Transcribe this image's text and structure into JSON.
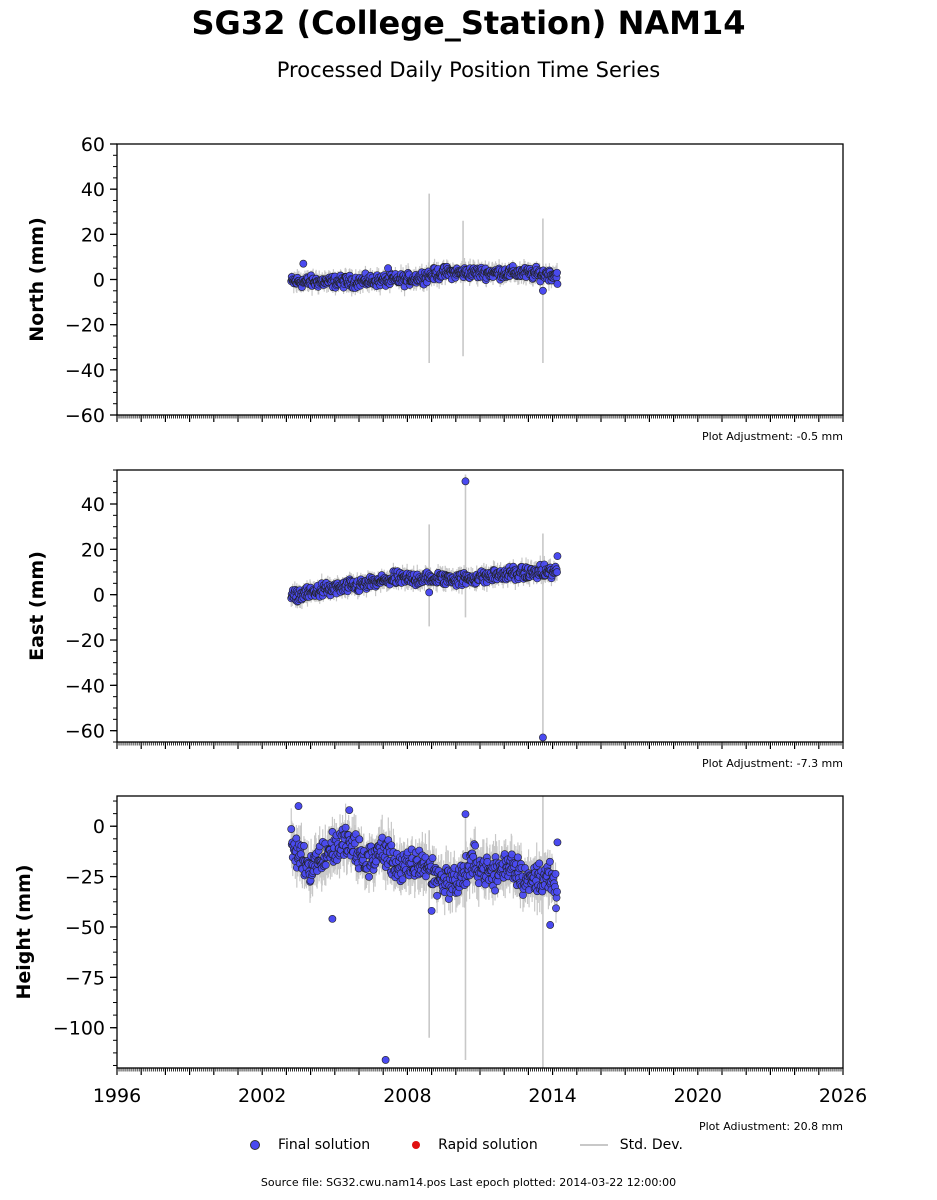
{
  "header": {
    "title": "SG32 (College_Station) NAM14",
    "subtitle": "Processed Daily Position Time Series"
  },
  "legend": {
    "final": "Final solution",
    "rapid": "Rapid solution",
    "stddev": "Std. Dev."
  },
  "footer": {
    "source": "Source file: SG32.cwu.nam14.pos  Last epoch plotted: 2014-03-22 12:00:00"
  },
  "colors": {
    "final": "#4a4af0",
    "rapid": "#e01010",
    "stddev": "#c8c8c8"
  },
  "chart_data": [
    {
      "type": "scatter",
      "ylabel": "North (mm)",
      "xlim": [
        1996,
        2026
      ],
      "ylim": [
        -60,
        60
      ],
      "yticks": [
        -60,
        -40,
        -20,
        0,
        20,
        40,
        60
      ],
      "annotation": "Plot Adjustment: -0.5 mm",
      "show_xtick_labels": false,
      "trend": [
        [
          2003.2,
          -1
        ],
        [
          2005.5,
          -1
        ],
        [
          2008.0,
          0
        ],
        [
          2009.5,
          3
        ],
        [
          2011.0,
          3
        ],
        [
          2012.5,
          3
        ],
        [
          2014.2,
          2
        ]
      ],
      "noise": 2.2,
      "err": 3,
      "outliers": [
        [
          2003.7,
          7
        ],
        [
          2007.2,
          5
        ],
        [
          2013.6,
          -5
        ],
        [
          2014.2,
          -2
        ]
      ],
      "big_errors": [
        [
          2008.9,
          38,
          -37
        ],
        [
          2010.3,
          26,
          -34
        ],
        [
          2013.6,
          27,
          -37
        ]
      ]
    },
    {
      "type": "scatter",
      "ylabel": "East (mm)",
      "xlim": [
        1996,
        2026
      ],
      "ylim": [
        -65,
        55
      ],
      "yticks": [
        -60,
        -40,
        -20,
        0,
        20,
        40
      ],
      "annotation": "Plot Adjustment: -7.3 mm",
      "show_xtick_labels": false,
      "trend": [
        [
          2003.2,
          -1
        ],
        [
          2004.5,
          2
        ],
        [
          2006.0,
          4
        ],
        [
          2007.5,
          7
        ],
        [
          2009.0,
          7
        ],
        [
          2010.5,
          7
        ],
        [
          2012.0,
          9
        ],
        [
          2014.2,
          10
        ]
      ],
      "noise": 2.5,
      "err": 3,
      "outliers": [
        [
          2010.4,
          50
        ],
        [
          2013.6,
          -63
        ],
        [
          2014.2,
          17
        ],
        [
          2008.9,
          1
        ]
      ],
      "big_errors": [
        [
          2008.9,
          31,
          -14
        ],
        [
          2010.4,
          53,
          -10
        ],
        [
          2013.6,
          27,
          -63
        ]
      ]
    },
    {
      "type": "scatter",
      "ylabel": "Height (mm)",
      "xlim": [
        1996,
        2026
      ],
      "ylim": [
        -120,
        15
      ],
      "yticks": [
        -100,
        -75,
        -50,
        -25,
        0
      ],
      "annotation": "Plot Adjustment: 20.8 mm",
      "show_xtick_labels": true,
      "xticks": [
        1996,
        2002,
        2008,
        2014,
        2020,
        2026
      ],
      "trend": [
        [
          2003.2,
          -10
        ],
        [
          2004.0,
          -20
        ],
        [
          2004.8,
          -12
        ],
        [
          2005.5,
          -8
        ],
        [
          2006.3,
          -18
        ],
        [
          2007.0,
          -12
        ],
        [
          2007.8,
          -22
        ],
        [
          2008.6,
          -18
        ],
        [
          2009.2,
          -25
        ],
        [
          2010.0,
          -28
        ],
        [
          2010.8,
          -18
        ],
        [
          2011.5,
          -24
        ],
        [
          2012.3,
          -18
        ],
        [
          2013.0,
          -28
        ],
        [
          2013.7,
          -24
        ],
        [
          2014.2,
          -33
        ]
      ],
      "noise": 7,
      "err": 8,
      "outliers": [
        [
          2007.1,
          -116
        ],
        [
          2004.9,
          -46
        ],
        [
          2003.5,
          10
        ],
        [
          2010.4,
          6
        ],
        [
          2014.2,
          -8
        ],
        [
          2013.9,
          -49
        ],
        [
          2009.0,
          -42
        ],
        [
          2005.6,
          8
        ]
      ],
      "big_errors": [
        [
          2008.9,
          -2,
          -105
        ],
        [
          2010.4,
          5,
          -116
        ],
        [
          2013.6,
          15,
          -120
        ]
      ]
    }
  ]
}
